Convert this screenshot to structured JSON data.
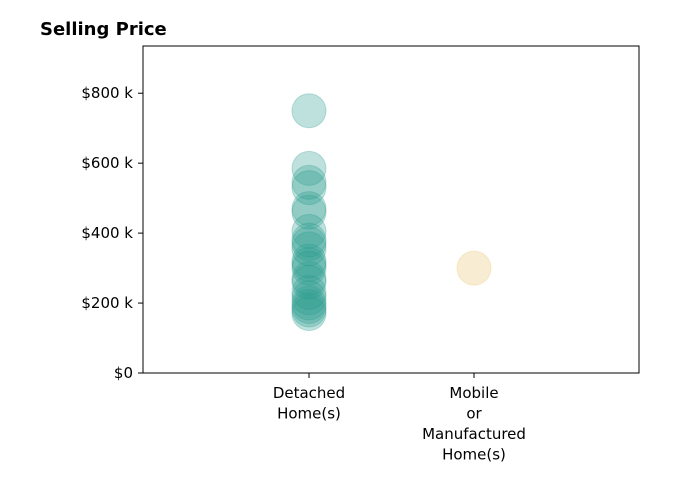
{
  "chart_data": {
    "type": "scatter",
    "title": "Selling Price",
    "xlabel": "",
    "ylabel": "",
    "categories": [
      "Detached\nHome(s)",
      "Mobile\nor\nManufactured\nHome(s)"
    ],
    "ylim": [
      0,
      935000
    ],
    "yticks": [
      {
        "value": 0,
        "label": "$0"
      },
      {
        "value": 200000,
        "label": "$200 k"
      },
      {
        "value": 400000,
        "label": "$400 k"
      },
      {
        "value": 600000,
        "label": "$600 k"
      },
      {
        "value": 800000,
        "label": "$800 k"
      }
    ],
    "grid": false,
    "legend": "none",
    "series": [
      {
        "category": "Detached\nHome(s)",
        "color": "#2a9d8f",
        "alpha": 0.3,
        "values": [
          750000,
          585000,
          545000,
          530000,
          470000,
          460000,
          405000,
          380000,
          370000,
          355000,
          320000,
          310000,
          300000,
          270000,
          260000,
          230000,
          215000,
          200000,
          190000,
          180000,
          170000
        ]
      },
      {
        "category": "Mobile\nor\nManufactured\nHome(s)",
        "color": "#e9c46a",
        "alpha": 0.3,
        "values": [
          300000
        ]
      }
    ]
  }
}
